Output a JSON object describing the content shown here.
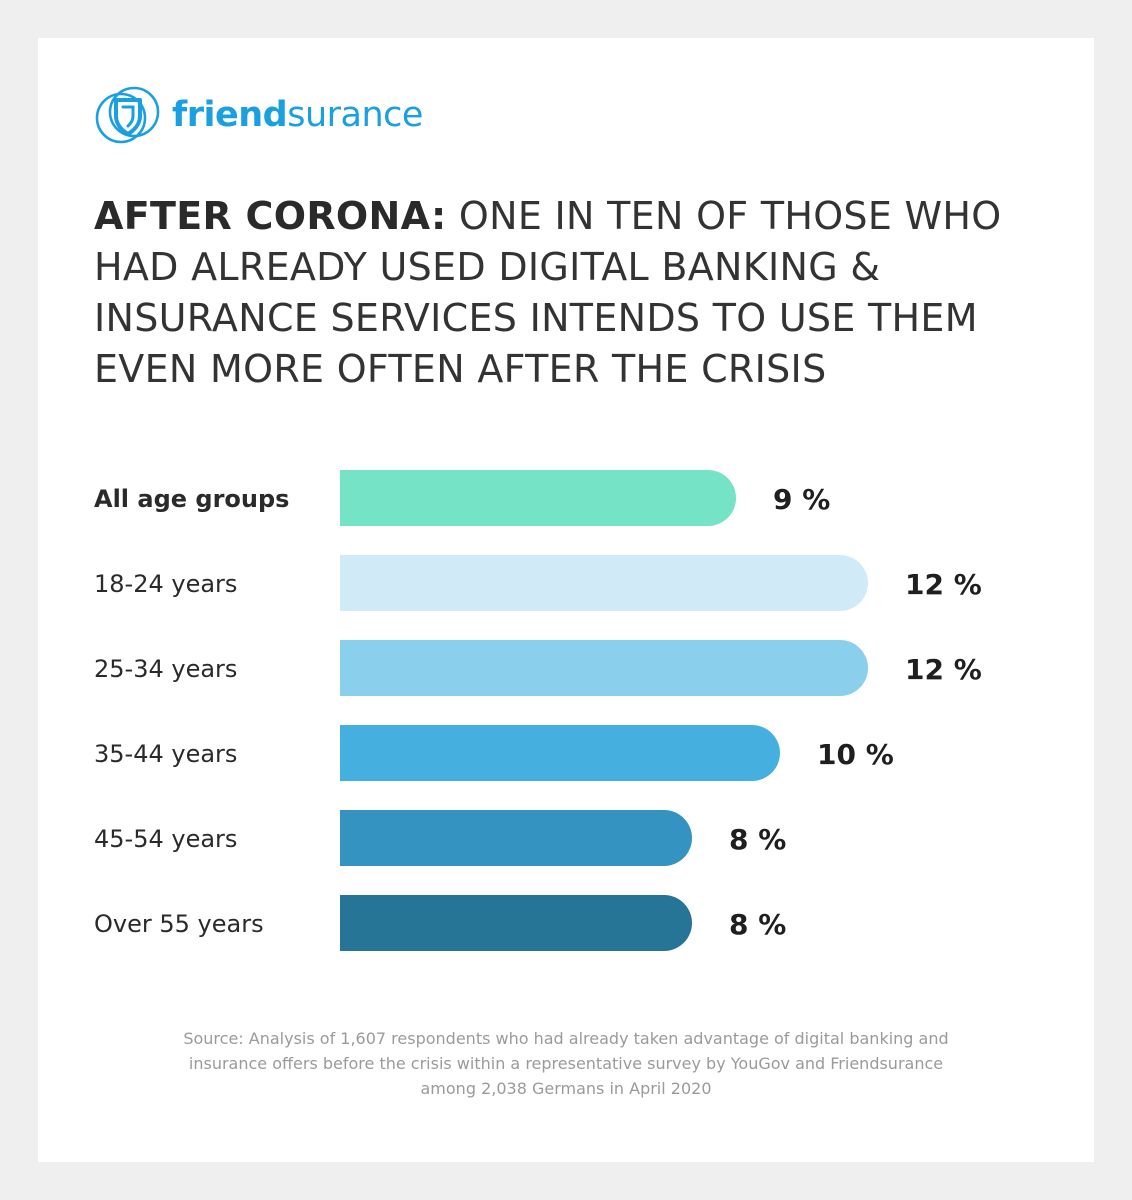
{
  "brand": {
    "name_bold": "friend",
    "name_light": "surance",
    "color": "#1a9fe0"
  },
  "headline": {
    "bold": "AFTER CORONA:",
    "rest": "ONE IN TEN OF THOSE WHO HAD ALREADY USED DIGITAL BANKING & INSURANCE SERVICES INTENDS TO USE THEM EVEN MORE OFTEN AFTER THE CRISIS"
  },
  "chart_data": {
    "type": "bar",
    "orientation": "horizontal",
    "categories": [
      "All age groups",
      "18-24 years",
      "25-34 years",
      "35-44 years",
      "45-54 years",
      "Over 55 years"
    ],
    "values": [
      9,
      12,
      12,
      10,
      8,
      8
    ],
    "value_labels": [
      "9 %",
      "12 %",
      "12 %",
      "10 %",
      "8 %",
      "8 %"
    ],
    "colors": [
      "#74e3c6",
      "#d0eaf7",
      "#8acfec",
      "#45b0e0",
      "#3493c0",
      "#267496"
    ],
    "bold_categories": [
      "All age groups"
    ],
    "title": "",
    "xlabel": "",
    "ylabel": "",
    "grid": false,
    "legend": "none"
  },
  "source": "Source: Analysis of 1,607 respondents who had already taken advantage of digital banking and insurance offers before the crisis within a representative survey by YouGov and Friendsurance among 2,038 Germans in April 2020"
}
